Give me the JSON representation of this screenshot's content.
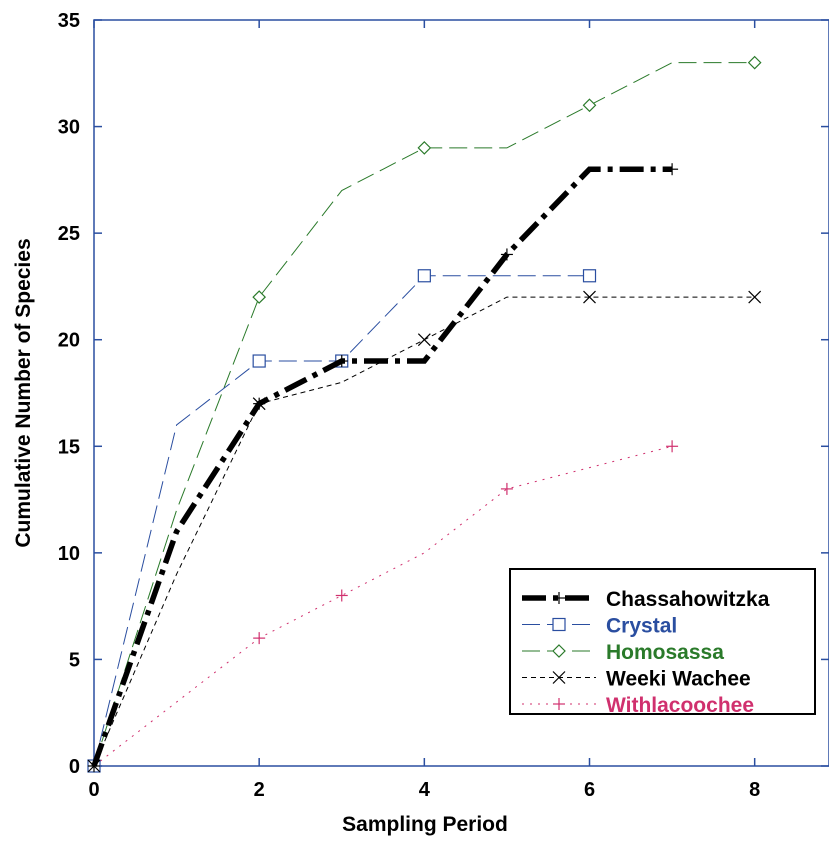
{
  "chart_data": {
    "type": "line",
    "title": "",
    "xlabel": "Sampling Period",
    "ylabel": "Cumulative Number of Species",
    "xlim": [
      0,
      8.9
    ],
    "ylim": [
      0,
      35
    ],
    "xticks": [
      0,
      2,
      4,
      6,
      8
    ],
    "yticks": [
      0,
      5,
      10,
      15,
      20,
      25,
      30,
      35
    ],
    "grid": false,
    "legend_position": "bottom-right",
    "series": [
      {
        "name": "Chassahowitzka",
        "color": "#000000",
        "line_style": "dash-dot-thick",
        "marker": "plus",
        "points": [
          [
            0,
            0
          ],
          [
            1,
            11
          ],
          [
            2,
            17
          ],
          [
            3,
            19
          ],
          [
            4,
            19
          ],
          [
            5,
            24
          ],
          [
            6,
            28
          ],
          [
            7,
            28
          ]
        ]
      },
      {
        "name": "Crystal",
        "color": "#2a4ea0",
        "line_style": "long-dash",
        "marker": "square",
        "points": [
          [
            0,
            0
          ],
          [
            1,
            16
          ],
          [
            2,
            19
          ],
          [
            3,
            19
          ],
          [
            4,
            23
          ],
          [
            5,
            23
          ],
          [
            6,
            23
          ]
        ]
      },
      {
        "name": "Homosassa",
        "color": "#2a7a2a",
        "line_style": "long-dash",
        "marker": "diamond",
        "points": [
          [
            0,
            0
          ],
          [
            1,
            12
          ],
          [
            2,
            22
          ],
          [
            3,
            27
          ],
          [
            4,
            29
          ],
          [
            5,
            29
          ],
          [
            6,
            31
          ],
          [
            7,
            33
          ],
          [
            8,
            33
          ]
        ]
      },
      {
        "name": "Weeki Wachee",
        "color": "#000000",
        "line_style": "short-dash",
        "marker": "x",
        "points": [
          [
            0,
            0
          ],
          [
            1,
            9
          ],
          [
            2,
            17
          ],
          [
            3,
            18
          ],
          [
            4,
            20
          ],
          [
            5,
            22
          ],
          [
            6,
            22
          ],
          [
            7,
            22
          ],
          [
            8,
            22
          ]
        ]
      },
      {
        "name": "Withlacoochee",
        "color": "#d0306e",
        "line_style": "dotted",
        "marker": "plus",
        "points": [
          [
            0,
            0
          ],
          [
            1,
            3
          ],
          [
            2,
            6
          ],
          [
            3,
            8
          ],
          [
            4,
            10
          ],
          [
            5,
            13
          ],
          [
            6,
            14
          ],
          [
            7,
            15
          ]
        ]
      }
    ]
  }
}
